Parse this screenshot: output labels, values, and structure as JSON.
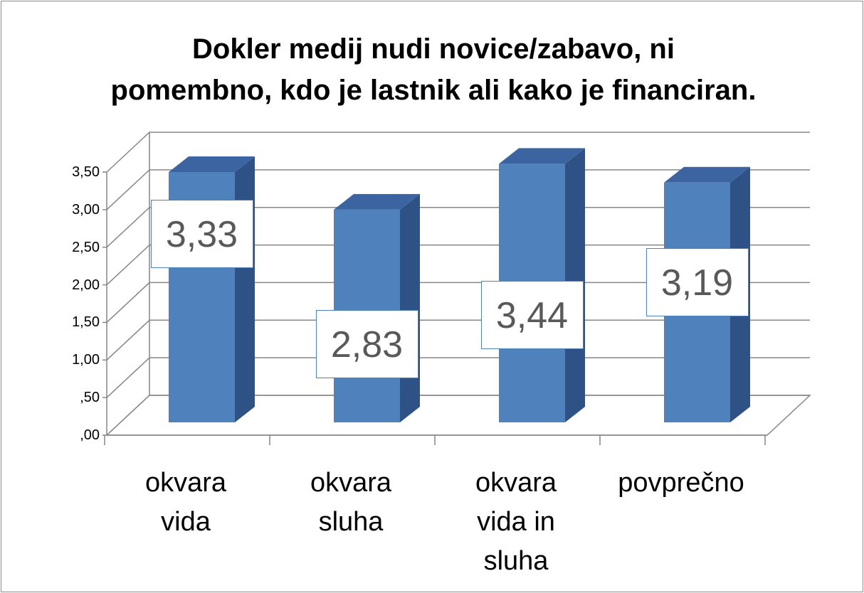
{
  "chart_data": {
    "type": "bar3d",
    "title": "Dokler medij nudi novice/zabavo, ni\npomembno, kdo je lastnik ali kako je financiran.",
    "categories": [
      "okvara\nvida",
      "okvara\nsluha",
      "okvara\nvida in\nsluha",
      "povprečno"
    ],
    "values": [
      3.33,
      2.83,
      3.44,
      3.19
    ],
    "value_labels": [
      "3,33",
      "2,83",
      "3,44",
      "3,19"
    ],
    "color": "#4f81bd",
    "ylim": [
      0,
      3.5
    ],
    "yticks": [
      {
        "value": 0,
        "label": ",00"
      },
      {
        "value": 0.5,
        "label": ",50"
      },
      {
        "value": 1,
        "label": "1,00"
      },
      {
        "value": 1.5,
        "label": "1,50"
      },
      {
        "value": 2,
        "label": "2,00"
      },
      {
        "value": 2.5,
        "label": "2,50"
      },
      {
        "value": 3,
        "label": "3,00"
      },
      {
        "value": 3.5,
        "label": "3,50"
      }
    ],
    "grid": true
  }
}
